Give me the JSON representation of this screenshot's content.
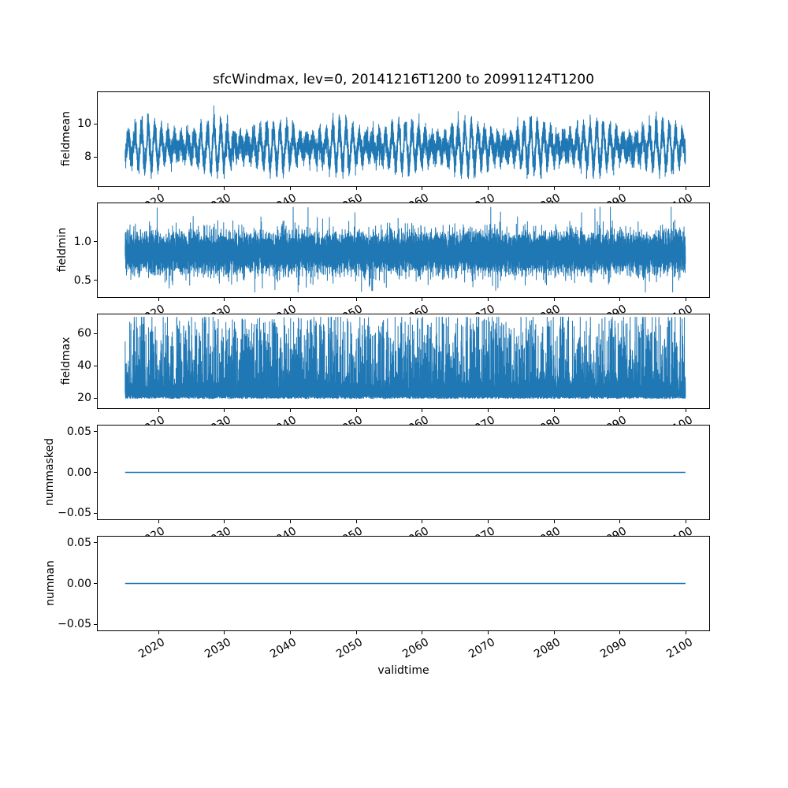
{
  "chart_data": {
    "type": "line",
    "title": "sfcWindmax, lev=0, 20141216T1200 to 20991124T1200",
    "variable_time_start": "20141216T1200",
    "variable_time_end": "20991124T1200",
    "xlabel": "validtime",
    "grid": false,
    "legend": false,
    "line_color": "#1f77b4",
    "axis_color": "#000000",
    "background_color": "#ffffff",
    "xlim": [
      2010.8,
      2103.5
    ],
    "x_data_range": [
      2014.96,
      2099.9
    ],
    "xticks": [
      2020,
      2030,
      2040,
      2050,
      2060,
      2070,
      2080,
      2090,
      2100
    ],
    "xtick_labels": [
      "2020",
      "2030",
      "2040",
      "2050",
      "2060",
      "2070",
      "2080",
      "2090",
      "2100"
    ],
    "xtick_rotation_deg": 30,
    "subplots": [
      {
        "ylabel": "fieldmean",
        "ylim": [
          6.25,
          11.9
        ],
        "yticks": [
          8,
          10
        ],
        "ytick_labels": [
          "8",
          "10"
        ],
        "series": {
          "name": "fieldmean",
          "pattern": "seasonal-noise",
          "mean": 8.6,
          "seasonal_amplitude_base": 0.75,
          "seasonal_amplitude_swing": 0.4,
          "amplitude_modulation_period_years": 9.7,
          "noise_sd": 0.36,
          "observed_min": 6.8,
          "observed_max": 11.3
        }
      },
      {
        "ylabel": "fieldmin",
        "ylim": [
          0.285,
          1.5
        ],
        "yticks": [
          0.5,
          1.0
        ],
        "ytick_labels": [
          "0.5",
          "1.0"
        ],
        "series": {
          "name": "fieldmin",
          "pattern": "noise",
          "mean": 0.86,
          "noise_sd": 0.125,
          "spike_up_probability": 0.003,
          "spike_down_probability": 0.002,
          "observed_min": 0.35,
          "observed_max": 1.45
        }
      },
      {
        "ylabel": "fieldmax",
        "ylim": [
          13.7,
          71.7
        ],
        "yticks": [
          20,
          40,
          60
        ],
        "ytick_labels": [
          "20",
          "40",
          "60"
        ],
        "series": {
          "name": "fieldmax",
          "pattern": "skewed-noise-spikes",
          "band_min": 18,
          "band_max": 33,
          "spike_fraction": 0.16,
          "observed_min": 18,
          "observed_max": 70
        }
      },
      {
        "ylabel": "nummasked",
        "ylim": [
          -0.0575,
          0.0575
        ],
        "yticks": [
          -0.05,
          0.0,
          0.05
        ],
        "ytick_labels": [
          "−0.05",
          "0.00",
          "0.05"
        ],
        "series": {
          "name": "nummasked",
          "pattern": "constant",
          "value": 0
        }
      },
      {
        "ylabel": "numnan",
        "ylim": [
          -0.0575,
          0.0575
        ],
        "yticks": [
          -0.05,
          0.0,
          0.05
        ],
        "ytick_labels": [
          "−0.05",
          "0.00",
          "0.05"
        ],
        "series": {
          "name": "numnan",
          "pattern": "constant",
          "value": 0
        }
      }
    ]
  }
}
